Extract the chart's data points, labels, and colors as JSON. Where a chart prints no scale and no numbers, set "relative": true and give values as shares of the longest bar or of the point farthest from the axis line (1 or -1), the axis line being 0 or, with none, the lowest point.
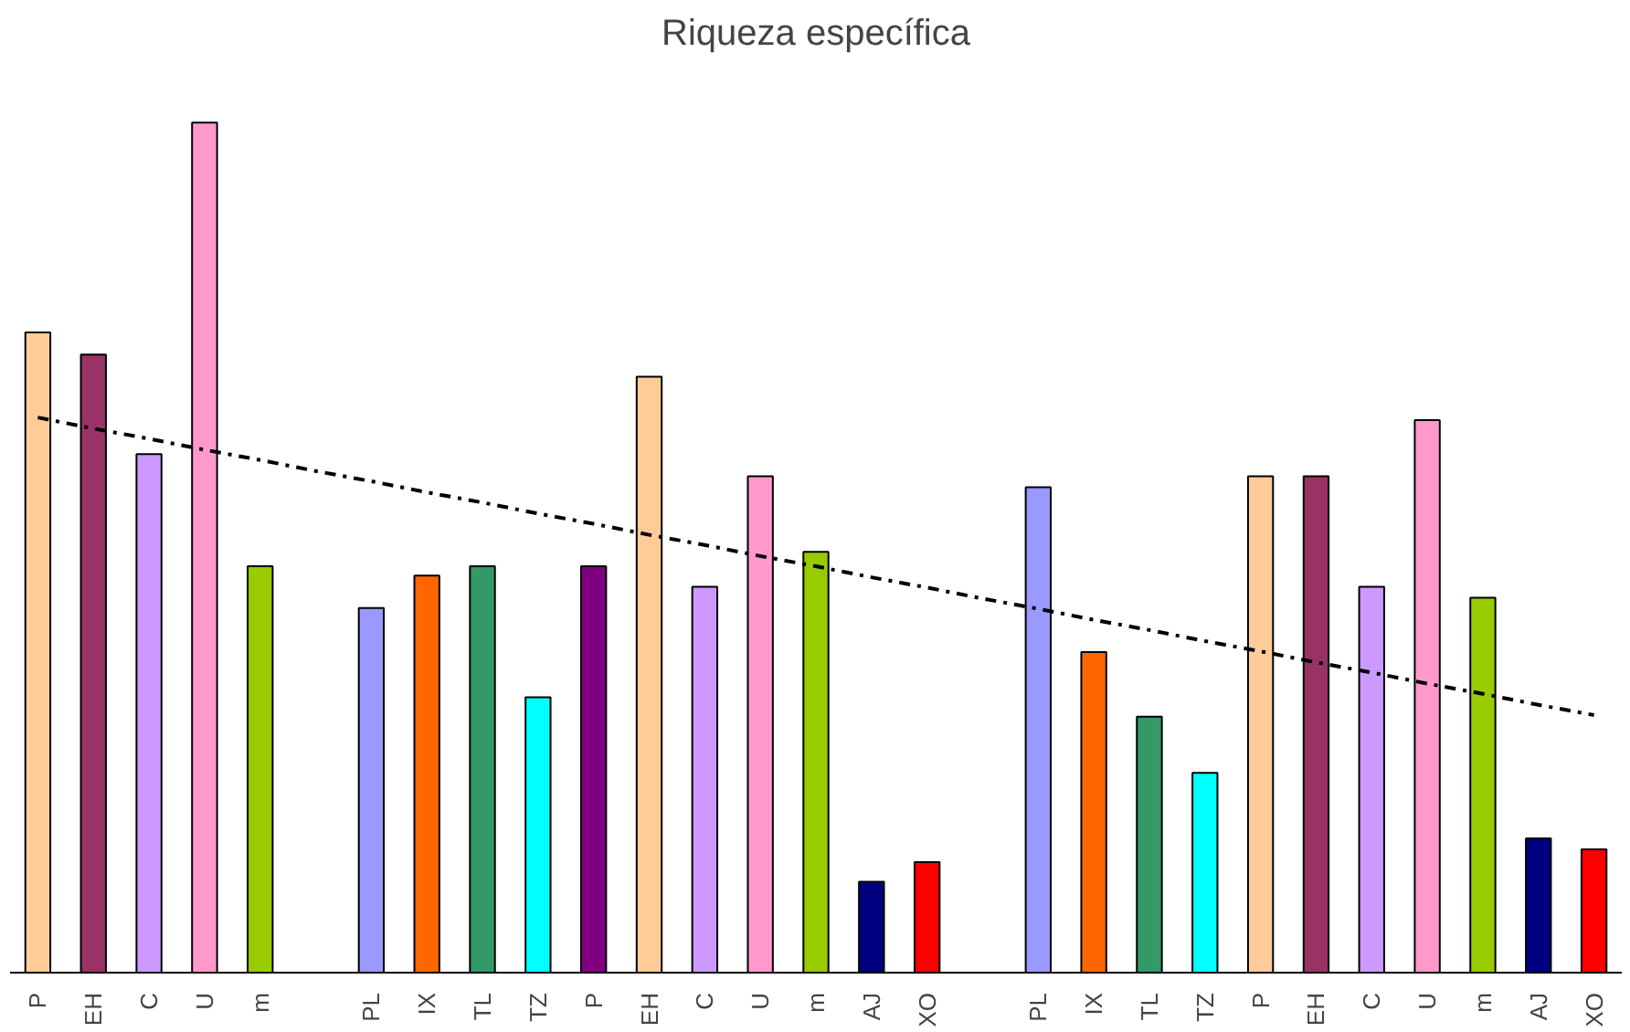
{
  "chart_data": {
    "type": "bar",
    "title": "Riqueza específica",
    "relative": true,
    "grid": false,
    "categories": [
      "P",
      "EH",
      "C",
      "U",
      "m",
      null,
      "PL",
      "IX",
      "TL",
      "TZ",
      "P",
      "EH",
      "C",
      "U",
      "m",
      "AJ",
      "XO",
      null,
      "PL",
      "IX",
      "TL",
      "TZ",
      "P",
      "EH",
      "C",
      "U",
      "m",
      "AJ",
      "XO"
    ],
    "series": [
      {
        "colors": [
          "#ffcc99",
          "#993366",
          "#cc99ff",
          "#ff99cc",
          "#99cc00",
          "#ffffff",
          "#9999ff",
          "#ff6600",
          "#339966",
          "#00ffff",
          "#800080",
          "#ffcc99",
          "#cc99ff",
          "#ff99cc",
          "#99cc00",
          "#000080",
          "#ff0000",
          "#ffffff",
          "#9999ff",
          "#ff6600",
          "#339966",
          "#00ffff",
          "#ffcc99",
          "#993366",
          "#cc99ff",
          "#ff99cc",
          "#99cc00",
          "#000080",
          "#ff0000"
        ],
        "values": [
          0.753,
          0.727,
          0.61,
          1.0,
          0.478,
          null,
          0.429,
          0.467,
          0.478,
          0.324,
          0.478,
          0.701,
          0.454,
          0.584,
          0.495,
          0.107,
          0.13,
          null,
          0.571,
          0.377,
          0.301,
          0.235,
          0.584,
          0.584,
          0.454,
          0.65,
          0.441,
          0.158,
          0.145
        ]
      },
      {
        "type": "line",
        "color": "#000000",
        "line_style": "dashed",
        "marker": "none",
        "values": [
          0.653,
          0.64,
          0.628,
          0.615,
          0.603,
          0.59,
          0.578,
          0.565,
          0.553,
          0.54,
          0.528,
          0.515,
          0.503,
          0.49,
          0.478,
          0.465,
          0.453,
          0.44,
          0.428,
          0.415,
          0.403,
          0.39,
          0.378,
          0.365,
          0.353,
          0.34,
          0.328,
          0.315,
          0.303
        ]
      }
    ]
  }
}
